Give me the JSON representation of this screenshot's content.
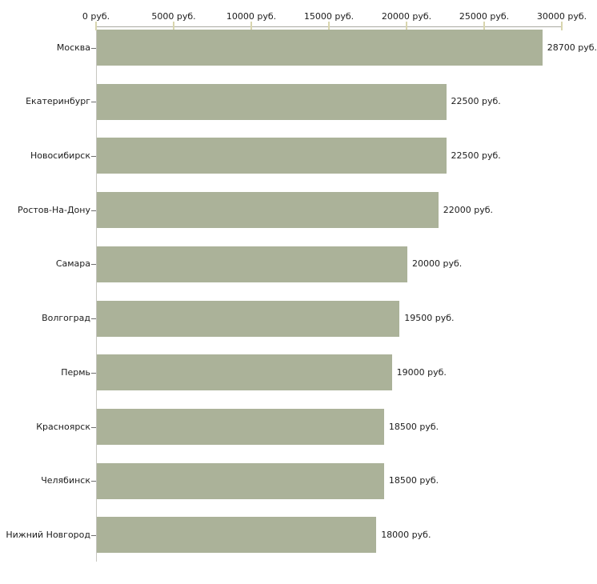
{
  "chart_data": {
    "type": "bar",
    "orientation": "horizontal",
    "title": "",
    "unit": "руб.",
    "grid": false,
    "legend": false,
    "x_axis": {
      "min": 0,
      "max": 30000,
      "tick_values": [
        0,
        5000,
        10000,
        15000,
        20000,
        25000,
        30000
      ],
      "ticks": [
        "0 руб.",
        "5000 руб.",
        "10000 руб.",
        "15000 руб.",
        "20000 руб.",
        "25000 руб.",
        "30000 руб."
      ]
    },
    "categories": [
      "Москва",
      "Екатеринбург",
      "Новосибирск",
      "Ростов-На-Дону",
      "Самара",
      "Волгоград",
      "Пермь",
      "Красноярск",
      "Челябинск",
      "Нижний Новгород"
    ],
    "values": [
      28700,
      22500,
      22500,
      22000,
      20000,
      19500,
      19000,
      18500,
      18500,
      18000
    ],
    "rows": [
      {
        "city": "Москва",
        "value": 28700,
        "label": "28700 руб."
      },
      {
        "city": "Екатеринбург",
        "value": 22500,
        "label": "22500 руб."
      },
      {
        "city": "Новосибирск",
        "value": 22500,
        "label": "22500 руб."
      },
      {
        "city": "Ростов-На-Дону",
        "value": 22000,
        "label": "22000 руб."
      },
      {
        "city": "Самара",
        "value": 20000,
        "label": "20000 руб."
      },
      {
        "city": "Волгоград",
        "value": 19500,
        "label": "19500 руб."
      },
      {
        "city": "Пермь",
        "value": 19000,
        "label": "19000 руб."
      },
      {
        "city": "Красноярск",
        "value": 18500,
        "label": "18500 руб."
      },
      {
        "city": "Челябинск",
        "value": 18500,
        "label": "18500 руб."
      },
      {
        "city": "Нижний Новгород",
        "value": 18000,
        "label": "18000 руб."
      }
    ],
    "colors": {
      "bar_fill": "#abb299",
      "x_axis_line": "#aaaaa2",
      "y_axis_line": "#c6c6c0",
      "x_tick_mark": "#d8d5ae",
      "y_tick_mark": "#6e6e6e",
      "text": "#1c1c1c",
      "background": "#ffffff"
    }
  }
}
